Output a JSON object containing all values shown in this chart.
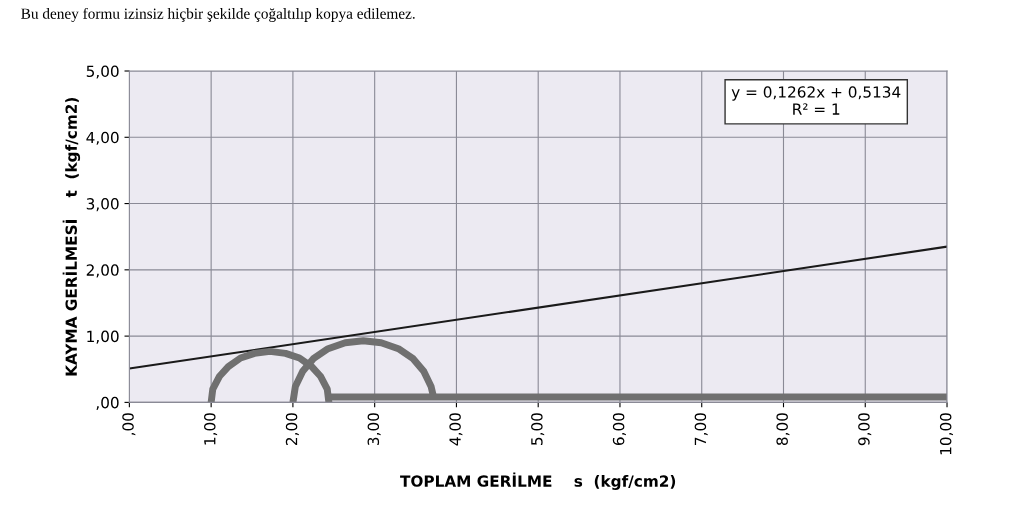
{
  "chart_data": {
    "type": "line",
    "xlabel": "TOPLAM GERİLME    s  (kgf/cm2)",
    "ylabel": "KAYMA GERİLMESİ    t  (kgf/cm2)",
    "annotations": [
      "Bu deney formu izinsiz hiçbir şekilde çoğaltılıp kopya edilemez.",
      "y = 0,1262x + 0,5134\nR² = 1"
    ],
    "series": [
      {
        "color": "#1a1a1a",
        "x": [
          0,
          10
        ],
        "values": [
          0.51,
          2.35
        ]
      },
      {
        "color": "#707070",
        "x": [
          1.0,
          1.02,
          1.1,
          1.21,
          1.36,
          1.53,
          1.72,
          1.91,
          2.08,
          2.23,
          2.34,
          2.42,
          2.44
        ],
        "values": [
          0,
          0.2,
          0.39,
          0.54,
          0.67,
          0.74,
          0.77,
          0.74,
          0.67,
          0.54,
          0.39,
          0.2,
          0
        ]
      },
      {
        "color": "#707070",
        "x": [
          2.0,
          2.03,
          2.12,
          2.25,
          2.43,
          2.64,
          2.86,
          3.08,
          3.29,
          3.47,
          3.6,
          3.69,
          3.72
        ],
        "values": [
          0,
          0.24,
          0.47,
          0.66,
          0.81,
          0.9,
          0.93,
          0.9,
          0.81,
          0.66,
          0.47,
          0.24,
          0.08
        ]
      },
      {
        "color": "#707070",
        "x": [
          2.44,
          10
        ],
        "values": [
          0.08,
          0.08
        ]
      }
    ],
    "xlim": [
      0,
      10
    ],
    "xticks": [
      {
        "value": 0,
        "label": ",00"
      },
      {
        "value": 1,
        "label": "1,00"
      },
      {
        "value": 2,
        "label": "2,00"
      },
      {
        "value": 3,
        "label": "3,00"
      },
      {
        "value": 4,
        "label": "4,00"
      },
      {
        "value": 5,
        "label": "5,00"
      },
      {
        "value": 6,
        "label": "6,00"
      },
      {
        "value": 7,
        "label": "7,00"
      },
      {
        "value": 8,
        "label": "8,00"
      },
      {
        "value": 9,
        "label": "9,00"
      },
      {
        "value": 10,
        "label": "10,00"
      }
    ],
    "ylim": [
      0,
      5
    ],
    "yticks": [
      {
        "value": 0,
        "label": ",00"
      },
      {
        "value": 1,
        "label": "1,00"
      },
      {
        "value": 2,
        "label": "2,00"
      },
      {
        "value": 3,
        "label": "3,00"
      },
      {
        "value": 4,
        "label": "4,00"
      },
      {
        "value": 5,
        "label": "5,00"
      }
    ],
    "grid": true
  }
}
